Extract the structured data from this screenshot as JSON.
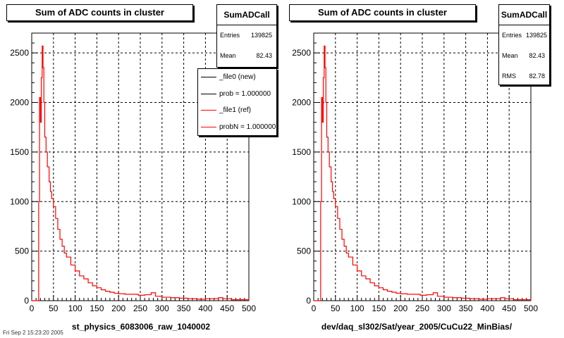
{
  "corner_text": "Fri Sep  2 15:23:20 2005",
  "colors": {
    "ref": "#ff0000",
    "new": "#000000",
    "grid": "#000000"
  },
  "chart_data": [
    {
      "type": "histogram",
      "title": "Sum of ADC counts in cluster",
      "xlabel": "st_physics_6083006_raw_1040002",
      "ylabel": "",
      "xlim": [
        0,
        500
      ],
      "ylim": [
        0,
        2700
      ],
      "xticks": [
        0,
        50,
        100,
        150,
        200,
        250,
        300,
        350,
        400,
        450,
        500
      ],
      "yticks": [
        0,
        500,
        1000,
        1500,
        2000,
        2500
      ],
      "grid": true,
      "stats": {
        "name": "SumADCall",
        "entries_label": "Entries",
        "entries": "139825",
        "mean_label": "Mean",
        "mean": "82.43"
      },
      "legend": {
        "position": "top-right",
        "entries": [
          {
            "label": "_file0 (new)",
            "color": "#000000"
          },
          {
            "label": "prob = 1.000000",
            "color": "#000000"
          },
          {
            "label": "_file1 (ref)",
            "color": "#ff0000"
          },
          {
            "label": "probN = 1.000000",
            "color": "#ff0000"
          }
        ]
      },
      "series": [
        {
          "color": "#ff0000",
          "x": [
            0,
            5,
            10,
            14,
            16,
            18,
            20,
            22,
            24,
            26,
            28,
            30,
            33,
            36,
            40,
            43,
            46,
            50,
            55,
            60,
            65,
            70,
            75,
            80,
            90,
            100,
            110,
            120,
            130,
            140,
            150,
            160,
            170,
            180,
            190,
            200,
            215,
            230,
            245,
            260,
            275,
            285,
            300,
            320,
            340,
            360,
            380,
            400,
            420,
            430,
            440,
            460,
            480,
            500
          ],
          "y": [
            0,
            0,
            0,
            0,
            1000,
            2050,
            1800,
            2250,
            2570,
            2350,
            2000,
            1650,
            1500,
            1350,
            1200,
            1100,
            1030,
            950,
            830,
            720,
            620,
            550,
            480,
            440,
            360,
            300,
            250,
            220,
            180,
            150,
            130,
            110,
            95,
            85,
            75,
            70,
            65,
            65,
            55,
            60,
            80,
            45,
            35,
            30,
            25,
            20,
            15,
            20,
            20,
            30,
            20,
            10,
            10,
            5
          ]
        }
      ]
    },
    {
      "type": "histogram",
      "title": "Sum of ADC counts in cluster",
      "xlabel": "dev/daq_sl302/Sat/year_2005/CuCu22_MinBias/",
      "ylabel": "",
      "xlim": [
        0,
        500
      ],
      "ylim": [
        0,
        2700
      ],
      "xticks": [
        0,
        50,
        100,
        150,
        200,
        250,
        300,
        350,
        400,
        450,
        500
      ],
      "yticks": [
        0,
        500,
        1000,
        1500,
        2000,
        2500
      ],
      "grid": true,
      "stats": {
        "name": "SumADCall",
        "entries_label": "Entries",
        "entries": "139825",
        "mean_label": "Mean",
        "mean": "82.43",
        "rms_label": "RMS",
        "rms": "82.78"
      },
      "series": [
        {
          "color": "#ff0000",
          "x": [
            0,
            5,
            10,
            14,
            16,
            18,
            20,
            22,
            24,
            26,
            28,
            30,
            33,
            36,
            40,
            43,
            46,
            50,
            55,
            60,
            65,
            70,
            75,
            80,
            90,
            100,
            110,
            120,
            130,
            140,
            150,
            160,
            170,
            180,
            190,
            200,
            215,
            230,
            245,
            260,
            275,
            285,
            300,
            320,
            340,
            360,
            380,
            400,
            420,
            430,
            440,
            460,
            480,
            500
          ],
          "y": [
            0,
            0,
            0,
            0,
            1000,
            2050,
            1800,
            2250,
            2570,
            2350,
            2000,
            1650,
            1500,
            1350,
            1200,
            1100,
            1030,
            950,
            830,
            720,
            620,
            550,
            480,
            440,
            360,
            300,
            250,
            220,
            180,
            150,
            130,
            110,
            95,
            85,
            75,
            70,
            65,
            65,
            55,
            60,
            80,
            45,
            35,
            30,
            25,
            20,
            15,
            20,
            20,
            30,
            20,
            10,
            10,
            5
          ]
        }
      ]
    }
  ]
}
